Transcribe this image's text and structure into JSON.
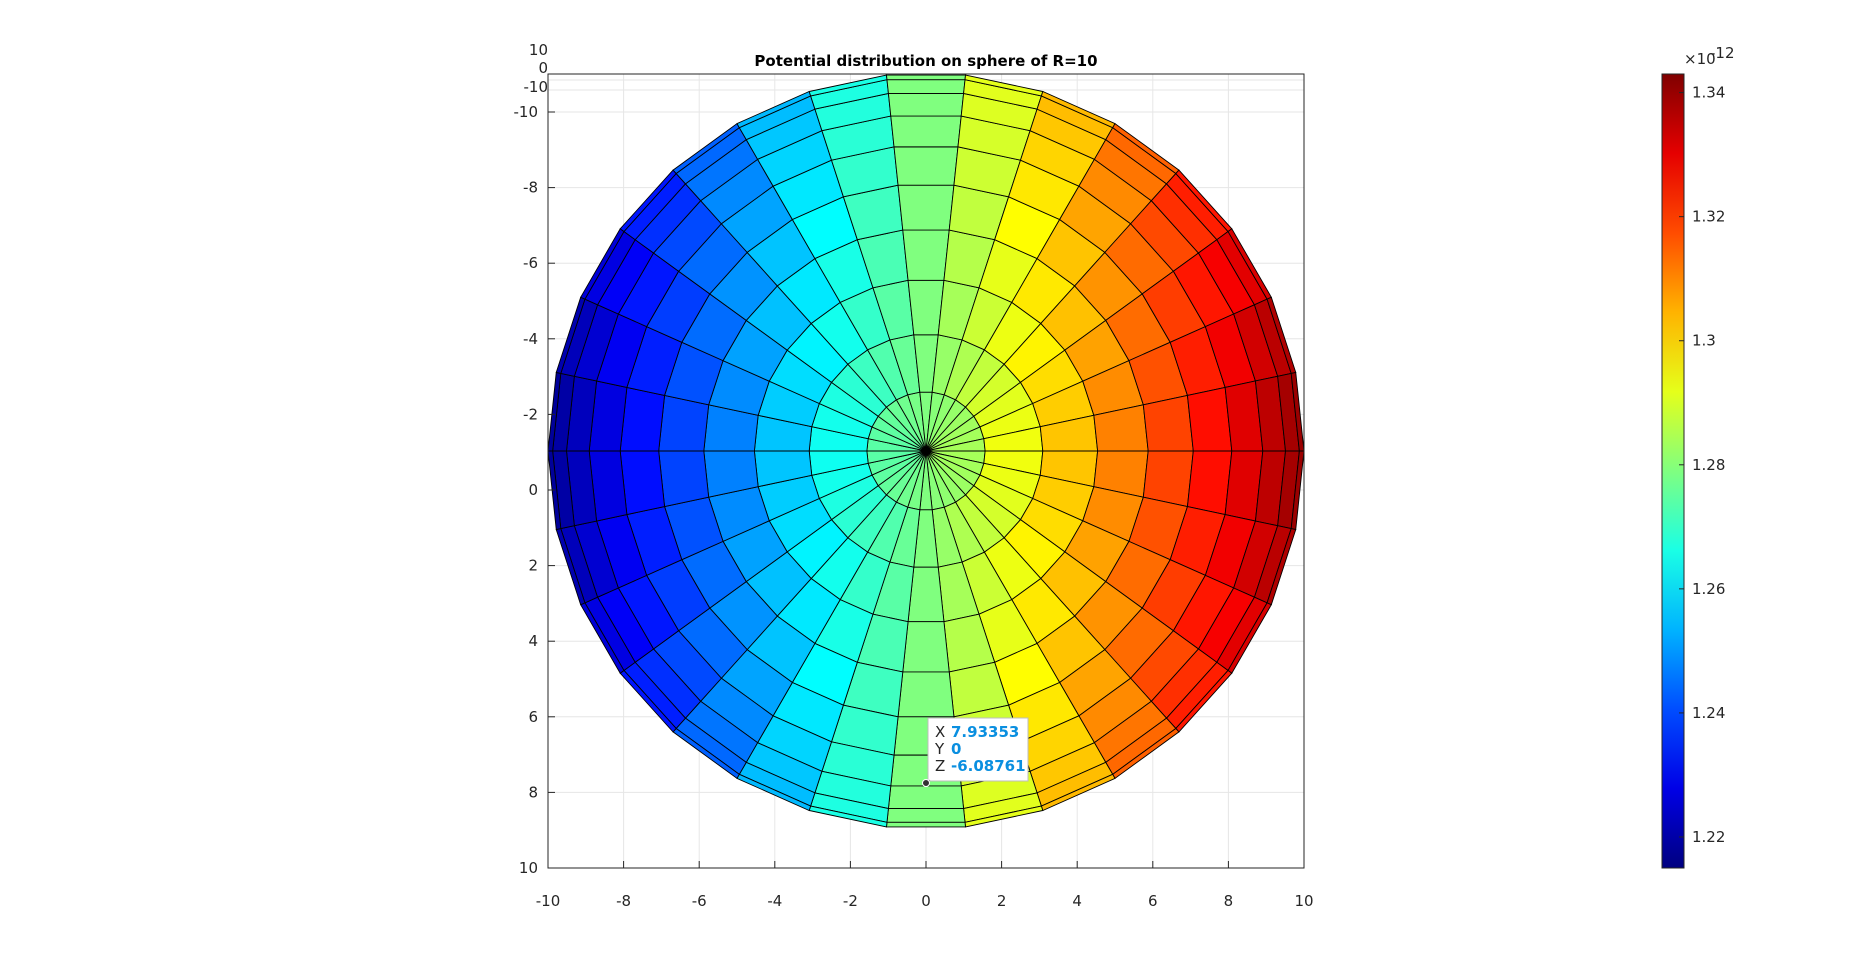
{
  "chart_data": {
    "type": "heatmap",
    "title": "Potential distribution on sphere of R=10",
    "radius": 10,
    "view": "top view of sphere surface (x-y projection), colored by potential",
    "x_ticks": [
      "-10",
      "-8",
      "-6",
      "-4",
      "-2",
      "0",
      "2",
      "4",
      "6",
      "8",
      "10"
    ],
    "y_ticks": [
      "-10",
      "-8",
      "-6",
      "-4",
      "-2",
      "0",
      "2",
      "4",
      "6",
      "8",
      "10"
    ],
    "z_ticks": [
      "10",
      "0",
      "-10"
    ],
    "xlim": [
      -10,
      10
    ],
    "ylim": [
      -10,
      10
    ],
    "grid": true,
    "colormap": "jet",
    "color_range": [
      1.215e-12,
      1.343e-12
    ],
    "colorbar": {
      "exponent_label": "×10",
      "exponent_power": "-12",
      "ticks": [
        "1.34",
        "1.32",
        "1.3",
        "1.28",
        "1.26",
        "1.24",
        "1.22"
      ],
      "tick_values": [
        1.34,
        1.32,
        1.3,
        1.28,
        1.26,
        1.24,
        1.22
      ]
    },
    "datatip": {
      "x_label": "X",
      "x_value": "7.93353",
      "y_label": "Y",
      "y_value": "0",
      "z_label": "Z",
      "z_value": "-6.08761"
    }
  },
  "colors": {
    "axis": "#262626",
    "grid": "#e6e6e6",
    "datatip_value": "#0a8fe0"
  }
}
